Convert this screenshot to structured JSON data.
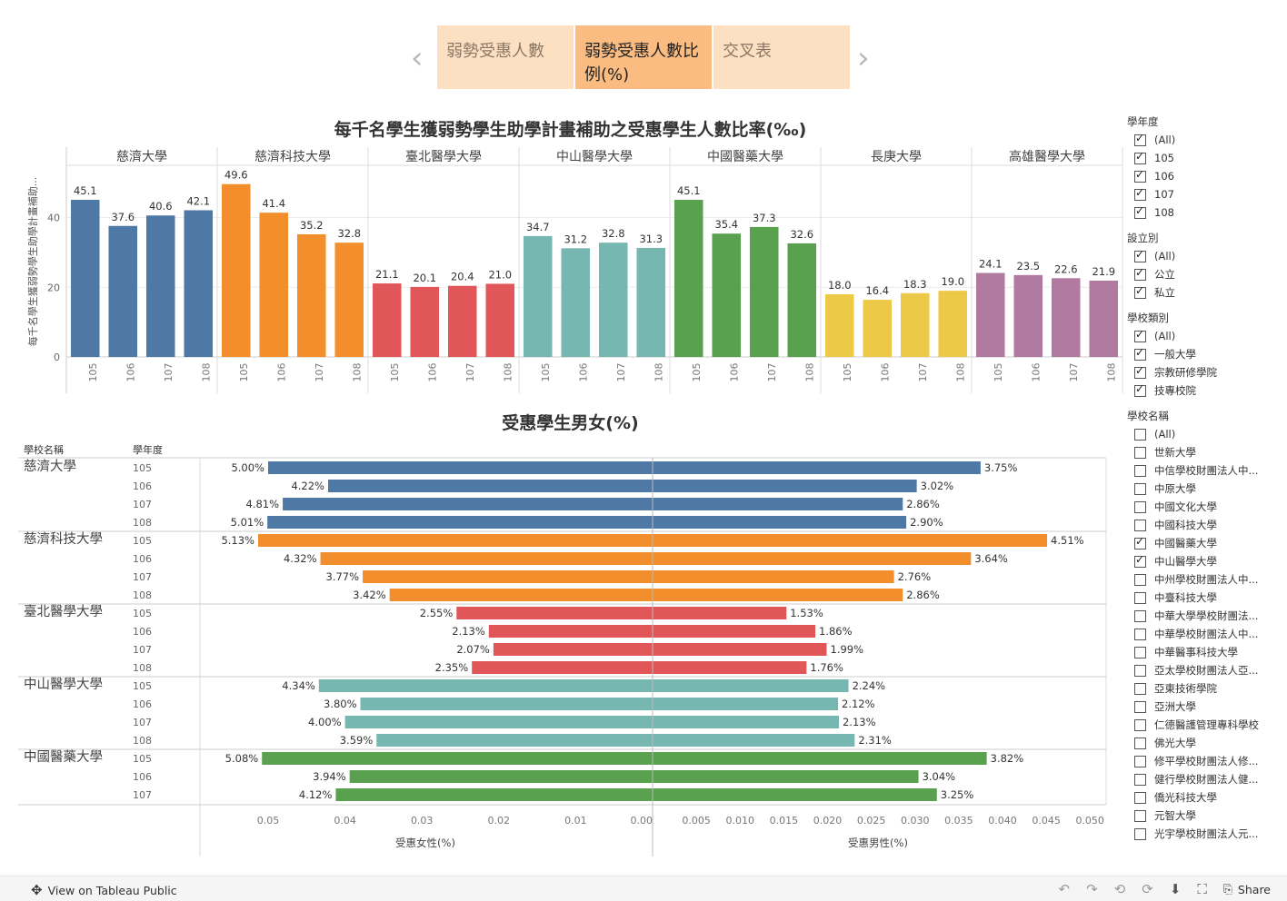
{
  "nav": {
    "tabs": [
      {
        "label": "弱勢受惠人數"
      },
      {
        "label": "弱勢受惠人數比例(%)"
      },
      {
        "label": "交叉表"
      }
    ]
  },
  "top_chart_title": "每千名學生獲弱勢學生助學計畫補助之受惠學生人數比率(‰)",
  "bottom_chart_title": "受惠學生男女(%)",
  "colors": {
    "慈濟大學": "#4e79a7",
    "慈濟科技大學": "#f28e2b",
    "臺北醫學大學": "#e15759",
    "中山醫學大學": "#76b7b2",
    "中國醫藥大學": "#59a14f",
    "長庚大學": "#edc948",
    "高雄醫學大學": "#b07aa1"
  },
  "chart_data": [
    {
      "type": "bar",
      "title": "每千名學生獲弱勢學生助學計畫補助之受惠學生人數比率(‰)",
      "ylabel": "每千名學生獲弱勢學生助學計畫補助...",
      "ylim": [
        0,
        55
      ],
      "yticks": [
        0,
        20,
        40
      ],
      "years": [
        "105",
        "106",
        "107",
        "108"
      ],
      "series": [
        {
          "name": "慈濟大學",
          "values": [
            45.1,
            37.6,
            40.6,
            42.1
          ]
        },
        {
          "name": "慈濟科技大學",
          "values": [
            49.6,
            41.4,
            35.2,
            32.8
          ]
        },
        {
          "name": "臺北醫學大學",
          "values": [
            21.1,
            20.1,
            20.4,
            21.0
          ]
        },
        {
          "name": "中山醫學大學",
          "values": [
            34.7,
            31.2,
            32.8,
            31.3
          ]
        },
        {
          "name": "中國醫藥大學",
          "values": [
            45.1,
            35.4,
            37.3,
            32.6
          ]
        },
        {
          "name": "長庚大學",
          "values": [
            18.0,
            16.4,
            18.3,
            19.0
          ]
        },
        {
          "name": "高雄醫學大學",
          "values": [
            24.1,
            23.5,
            22.6,
            21.9
          ]
        }
      ]
    },
    {
      "type": "bar",
      "title": "受惠學生男女(%)",
      "row_header_school": "學校名稱",
      "row_header_year": "學年度",
      "female_label": "受惠女性(%)",
      "male_label": "受惠男性(%)",
      "female_ticks": [
        "0.05",
        "0.04",
        "0.03",
        "0.02",
        "0.01",
        "0.00"
      ],
      "male_ticks": [
        "0.005",
        "0.010",
        "0.015",
        "0.020",
        "0.025",
        "0.030",
        "0.035",
        "0.040",
        "0.045",
        "0.050"
      ],
      "groups": [
        {
          "school": "慈濟大學",
          "rows": [
            {
              "year": "105",
              "female": 5.0,
              "male": 3.75
            },
            {
              "year": "106",
              "female": 4.22,
              "male": 3.02
            },
            {
              "year": "107",
              "female": 4.81,
              "male": 2.86
            },
            {
              "year": "108",
              "female": 5.01,
              "male": 2.9
            }
          ]
        },
        {
          "school": "慈濟科技大學",
          "rows": [
            {
              "year": "105",
              "female": 5.13,
              "male": 4.51
            },
            {
              "year": "106",
              "female": 4.32,
              "male": 3.64
            },
            {
              "year": "107",
              "female": 3.77,
              "male": 2.76
            },
            {
              "year": "108",
              "female": 3.42,
              "male": 2.86
            }
          ]
        },
        {
          "school": "臺北醫學大學",
          "rows": [
            {
              "year": "105",
              "female": 2.55,
              "male": 1.53
            },
            {
              "year": "106",
              "female": 2.13,
              "male": 1.86
            },
            {
              "year": "107",
              "female": 2.07,
              "male": 1.99
            },
            {
              "year": "108",
              "female": 2.35,
              "male": 1.76
            }
          ]
        },
        {
          "school": "中山醫學大學",
          "rows": [
            {
              "year": "105",
              "female": 4.34,
              "male": 2.24
            },
            {
              "year": "106",
              "female": 3.8,
              "male": 2.12
            },
            {
              "year": "107",
              "female": 4.0,
              "male": 2.13
            },
            {
              "year": "108",
              "female": 3.59,
              "male": 2.31
            }
          ]
        },
        {
          "school": "中國醫藥大學",
          "rows": [
            {
              "year": "105",
              "female": 5.08,
              "male": 3.82
            },
            {
              "year": "106",
              "female": 3.94,
              "male": 3.04
            },
            {
              "year": "107",
              "female": 4.12,
              "male": 3.25
            }
          ]
        }
      ]
    }
  ],
  "filters": [
    {
      "title": "學年度",
      "items": [
        {
          "label": "(All)",
          "checked": true
        },
        {
          "label": "105",
          "checked": true
        },
        {
          "label": "106",
          "checked": true
        },
        {
          "label": "107",
          "checked": true
        },
        {
          "label": "108",
          "checked": true
        }
      ]
    },
    {
      "title": "設立別",
      "items": [
        {
          "label": "(All)",
          "checked": true
        },
        {
          "label": "公立",
          "checked": true
        },
        {
          "label": "私立",
          "checked": true
        }
      ]
    },
    {
      "title": "學校類別",
      "items": [
        {
          "label": "(All)",
          "checked": true
        },
        {
          "label": "一般大學",
          "checked": true
        },
        {
          "label": "宗教研修學院",
          "checked": true
        },
        {
          "label": "技專校院",
          "checked": true
        }
      ]
    },
    {
      "title": "學校名稱",
      "items": [
        {
          "label": "(All)",
          "checked": false
        },
        {
          "label": "世新大學",
          "checked": false
        },
        {
          "label": "中信學校財團法人中...",
          "checked": false
        },
        {
          "label": "中原大學",
          "checked": false
        },
        {
          "label": "中國文化大學",
          "checked": false
        },
        {
          "label": "中國科技大學",
          "checked": false
        },
        {
          "label": "中國醫藥大學",
          "checked": true
        },
        {
          "label": "中山醫學大學",
          "checked": true
        },
        {
          "label": "中州學校財團法人中...",
          "checked": false
        },
        {
          "label": "中臺科技大學",
          "checked": false
        },
        {
          "label": "中華大學學校財團法...",
          "checked": false
        },
        {
          "label": "中華學校財團法人中...",
          "checked": false
        },
        {
          "label": "中華醫事科技大學",
          "checked": false
        },
        {
          "label": "亞太學校財團法人亞...",
          "checked": false
        },
        {
          "label": "亞東技術學院",
          "checked": false
        },
        {
          "label": "亞洲大學",
          "checked": false
        },
        {
          "label": "仁德醫護管理專科學校",
          "checked": false
        },
        {
          "label": "佛光大學",
          "checked": false
        },
        {
          "label": "修平學校財團法人修...",
          "checked": false
        },
        {
          "label": "健行學校財團法人健...",
          "checked": false
        },
        {
          "label": "僑光科技大學",
          "checked": false
        },
        {
          "label": "元智大學",
          "checked": false
        },
        {
          "label": "光宇學校財團法人元...",
          "checked": false
        }
      ]
    }
  ],
  "footer": {
    "view_label": "View on Tableau Public",
    "share_label": "Share"
  }
}
